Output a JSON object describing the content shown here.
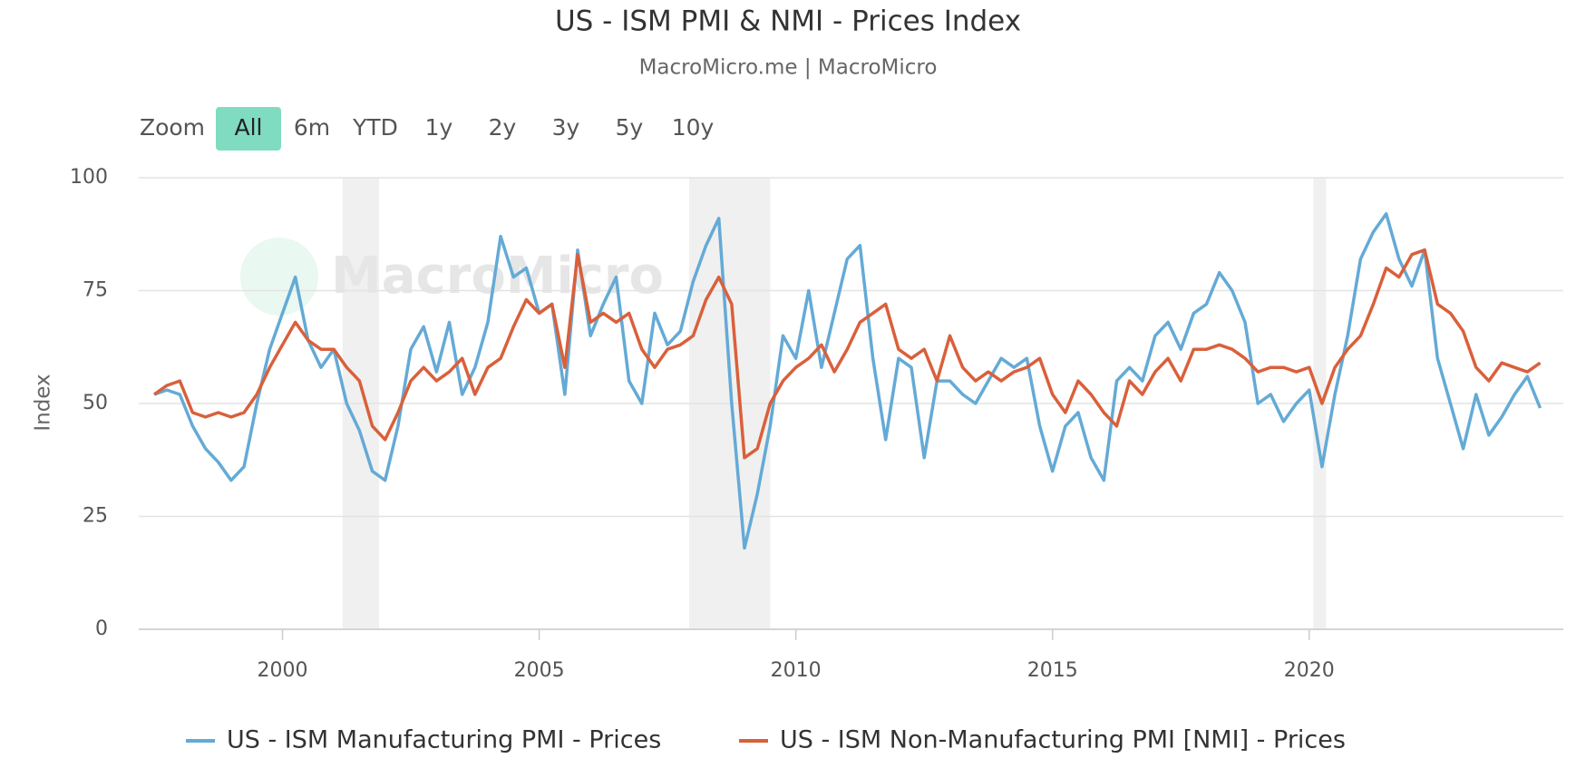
{
  "chart_data": {
    "type": "line",
    "title": "US - ISM PMI & NMI - Prices Index",
    "subtitle": "MacroMicro.me | MacroMicro",
    "y_label": "Index",
    "watermark": "MacroMicro",
    "range_selector": {
      "label": "Zoom",
      "buttons": [
        "All",
        "6m",
        "YTD",
        "1y",
        "2y",
        "3y",
        "5y",
        "10y"
      ],
      "selected": 0
    },
    "xlim": [
      1997.2,
      2024.95
    ],
    "xticks": [
      2000,
      2005,
      2010,
      2015,
      2020
    ],
    "ylim": [
      0,
      100
    ],
    "yticks": [
      0,
      25,
      50,
      75,
      100
    ],
    "grid": true,
    "legend": "bottom",
    "recessions": [
      [
        2001.17,
        2001.88
      ],
      [
        2007.92,
        2009.5
      ],
      [
        2020.08,
        2020.33
      ]
    ],
    "x": [
      1997.5,
      1997.75,
      1998,
      1998.25,
      1998.5,
      1998.75,
      1999,
      1999.25,
      1999.5,
      1999.75,
      2000,
      2000.25,
      2000.5,
      2000.75,
      2001,
      2001.25,
      2001.5,
      2001.75,
      2002,
      2002.25,
      2002.5,
      2002.75,
      2003,
      2003.25,
      2003.5,
      2003.75,
      2004,
      2004.25,
      2004.5,
      2004.75,
      2005,
      2005.25,
      2005.5,
      2005.75,
      2006,
      2006.25,
      2006.5,
      2006.75,
      2007,
      2007.25,
      2007.5,
      2007.75,
      2008,
      2008.25,
      2008.5,
      2008.75,
      2009,
      2009.25,
      2009.5,
      2009.75,
      2010,
      2010.25,
      2010.5,
      2010.75,
      2011,
      2011.25,
      2011.5,
      2011.75,
      2012,
      2012.25,
      2012.5,
      2012.75,
      2013,
      2013.25,
      2013.5,
      2013.75,
      2014,
      2014.25,
      2014.5,
      2014.75,
      2015,
      2015.25,
      2015.5,
      2015.75,
      2016,
      2016.25,
      2016.5,
      2016.75,
      2017,
      2017.25,
      2017.5,
      2017.75,
      2018,
      2018.25,
      2018.5,
      2018.75,
      2019,
      2019.25,
      2019.5,
      2019.75,
      2020,
      2020.25,
      2020.5,
      2020.75,
      2021,
      2021.25,
      2021.5,
      2021.75,
      2022,
      2022.25,
      2022.5,
      2022.75,
      2023,
      2023.25,
      2023.5,
      2023.75,
      2024,
      2024.25,
      2024.5
    ],
    "series": [
      {
        "name": "US - ISM Manufacturing PMI - Prices",
        "color": "#64aad6",
        "values": [
          52,
          53,
          52,
          45,
          40,
          37,
          33,
          36,
          50,
          62,
          70,
          78,
          64,
          58,
          62,
          50,
          44,
          35,
          33,
          45,
          62,
          67,
          57,
          68,
          52,
          58,
          68,
          87,
          78,
          80,
          70,
          72,
          52,
          84,
          65,
          72,
          78,
          55,
          50,
          70,
          63,
          66,
          77,
          85,
          91,
          50,
          18,
          30,
          45,
          65,
          60,
          75,
          58,
          70,
          82,
          85,
          60,
          42,
          60,
          58,
          38,
          55,
          55,
          52,
          50,
          55,
          60,
          58,
          60,
          45,
          35,
          45,
          48,
          38,
          33,
          55,
          58,
          55,
          65,
          68,
          62,
          70,
          72,
          79,
          75,
          68,
          50,
          52,
          46,
          50,
          53,
          36,
          52,
          65,
          82,
          88,
          92,
          82,
          76,
          84,
          60,
          50,
          40,
          52,
          43,
          47,
          52,
          56,
          49
        ]
      },
      {
        "name": "US - ISM Non-Manufacturing PMI [NMI] - Prices",
        "color": "#d9603b",
        "values": [
          52,
          54,
          55,
          48,
          47,
          48,
          47,
          48,
          52,
          58,
          63,
          68,
          64,
          62,
          62,
          58,
          55,
          45,
          42,
          48,
          55,
          58,
          55,
          57,
          60,
          52,
          58,
          60,
          67,
          73,
          70,
          72,
          58,
          83,
          68,
          70,
          68,
          70,
          62,
          58,
          62,
          63,
          65,
          73,
          78,
          72,
          38,
          40,
          50,
          55,
          58,
          60,
          63,
          57,
          62,
          68,
          70,
          72,
          62,
          60,
          62,
          55,
          65,
          58,
          55,
          57,
          55,
          57,
          58,
          60,
          52,
          48,
          55,
          52,
          48,
          45,
          55,
          52,
          57,
          60,
          55,
          62,
          62,
          63,
          62,
          60,
          57,
          58,
          58,
          57,
          58,
          50,
          58,
          62,
          65,
          72,
          80,
          78,
          83,
          84,
          72,
          70,
          66,
          58,
          55,
          59,
          58,
          57,
          59
        ]
      }
    ]
  }
}
